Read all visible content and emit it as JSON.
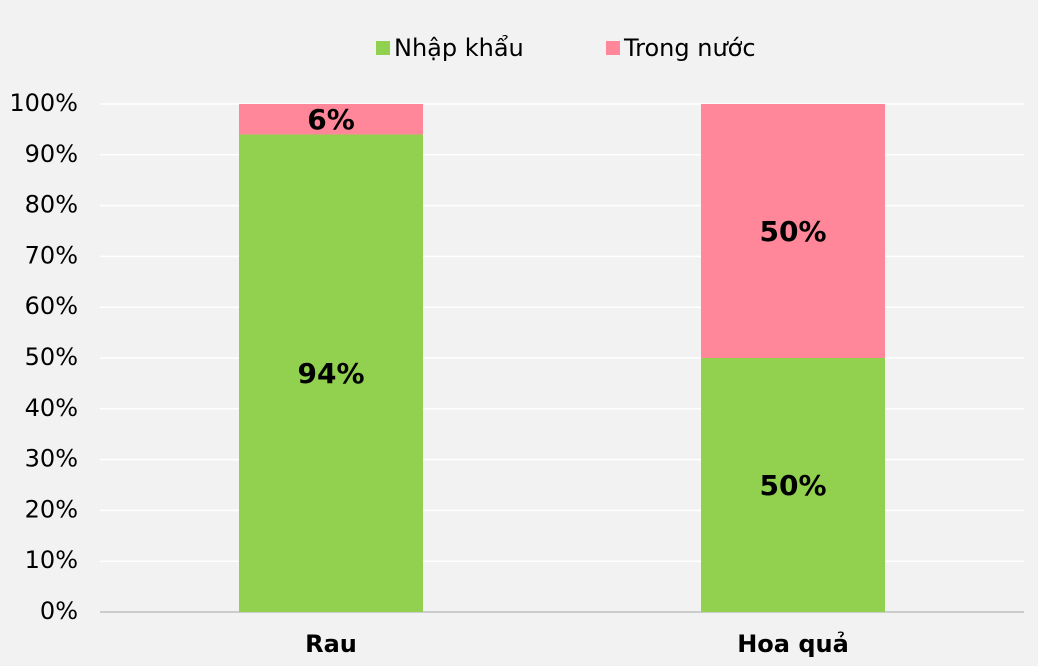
{
  "chart_data": {
    "type": "stacked_bar",
    "categories": [
      "Rau",
      "Hoa quả"
    ],
    "series": [
      {
        "name": "Nhập khẩu",
        "color": "#92d050",
        "values": [
          94,
          50
        ],
        "value_labels": [
          "94%",
          "50%"
        ]
      },
      {
        "name": "Trong nước",
        "color": "#ff8799",
        "values": [
          6,
          50
        ],
        "value_labels": [
          "6%",
          "50%"
        ]
      }
    ],
    "ylim": [
      0,
      100
    ],
    "yticks": [
      {
        "value": 0,
        "label": "0%"
      },
      {
        "value": 10,
        "label": "10%"
      },
      {
        "value": 20,
        "label": "20%"
      },
      {
        "value": 30,
        "label": "30%"
      },
      {
        "value": 40,
        "label": "40%"
      },
      {
        "value": 50,
        "label": "50%"
      },
      {
        "value": 60,
        "label": "60%"
      },
      {
        "value": 70,
        "label": "70%"
      },
      {
        "value": 80,
        "label": "80%"
      },
      {
        "value": 90,
        "label": "90%"
      },
      {
        "value": 100,
        "label": "100%"
      }
    ],
    "grid": true,
    "legend": "top"
  }
}
